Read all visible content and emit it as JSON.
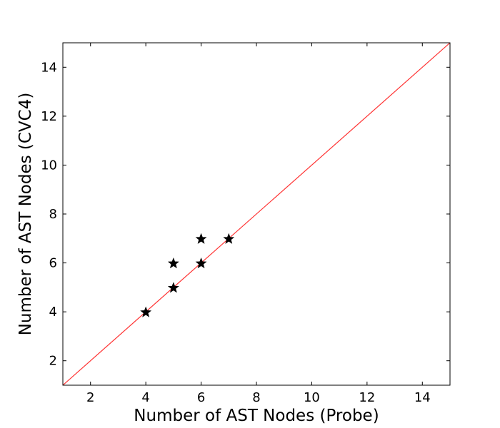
{
  "chart_data": {
    "type": "scatter",
    "title": "",
    "xlabel": "Number of AST Nodes (Probe)",
    "ylabel": "Number of AST Nodes (CVC4)",
    "xlim": [
      1,
      15
    ],
    "ylim": [
      1,
      15
    ],
    "x_ticks": [
      2,
      4,
      6,
      8,
      10,
      12,
      14
    ],
    "y_ticks": [
      2,
      4,
      6,
      8,
      10,
      12,
      14
    ],
    "grid": false,
    "marker": "star",
    "marker_color": "#000000",
    "reference_line": {
      "type": "y=x",
      "color": "#ff3333"
    },
    "series": [
      {
        "points": [
          {
            "x": 4,
            "y": 4
          },
          {
            "x": 5,
            "y": 5
          },
          {
            "x": 5,
            "y": 6
          },
          {
            "x": 6,
            "y": 6
          },
          {
            "x": 6,
            "y": 7
          },
          {
            "x": 7,
            "y": 7
          }
        ]
      }
    ]
  }
}
